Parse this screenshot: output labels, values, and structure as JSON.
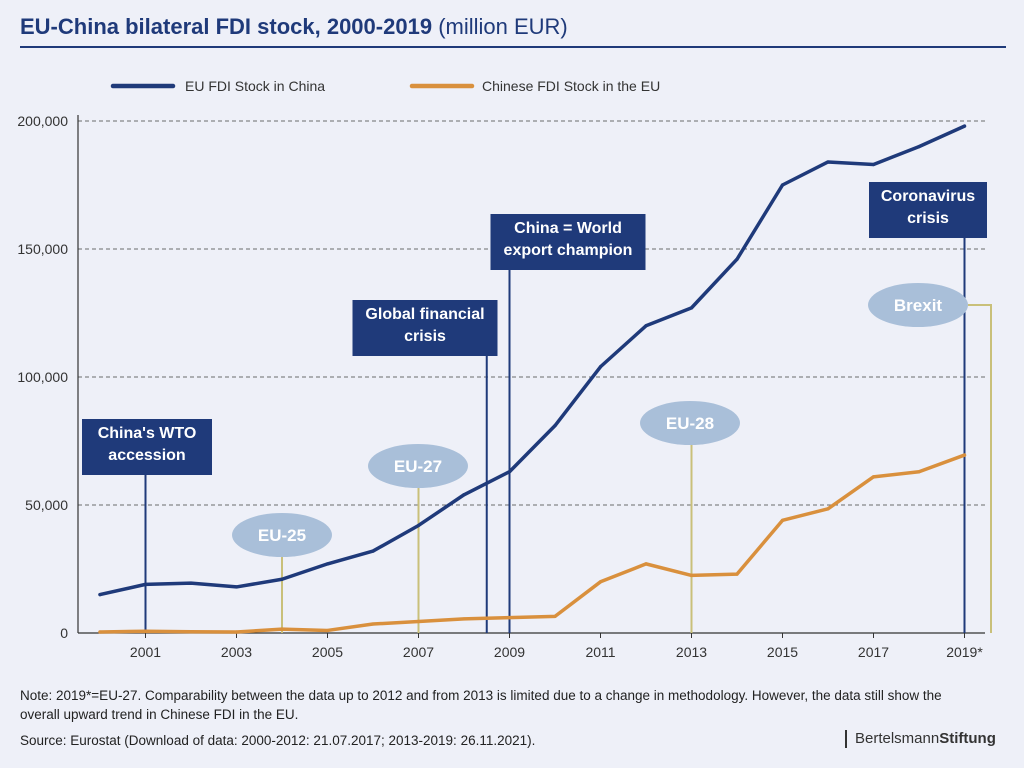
{
  "header": {
    "title_bold": "EU-China bilateral FDI stock, 2000-2019",
    "title_unit": "(million EUR)"
  },
  "chart_data": {
    "type": "line",
    "title": "EU-China bilateral FDI stock, 2000-2019 (million EUR)",
    "x": [
      2000,
      2001,
      2002,
      2003,
      2004,
      2005,
      2006,
      2007,
      2008,
      2009,
      2010,
      2011,
      2012,
      2013,
      2014,
      2015,
      2016,
      2017,
      2018,
      2019
    ],
    "x_tick_values": [
      2001,
      2003,
      2005,
      2007,
      2009,
      2011,
      2013,
      2015,
      2017,
      2019
    ],
    "x_tick_labels": [
      "2001",
      "2003",
      "2005",
      "2007",
      "2009",
      "2011",
      "2013",
      "2015",
      "2017",
      "2019*"
    ],
    "y_ticks": [
      {
        "value": 0,
        "label": "0"
      },
      {
        "value": 50000,
        "label": "50,000"
      },
      {
        "value": 100000,
        "label": "100,000"
      },
      {
        "value": 150000,
        "label": "150,000"
      },
      {
        "value": 200000,
        "label": "200,000"
      }
    ],
    "ylim": [
      0,
      200000
    ],
    "grid": true,
    "legend_position": "top-left",
    "series": [
      {
        "name": "EU FDI Stock in China",
        "color": "#1f3a7a",
        "values": [
          15000,
          19000,
          19500,
          18000,
          21000,
          27000,
          32000,
          42000,
          54000,
          63000,
          81000,
          104000,
          120000,
          127000,
          146000,
          175000,
          184000,
          183000,
          190000,
          198000
        ]
      },
      {
        "name": "Chinese FDI Stock in the EU",
        "color": "#d9903d",
        "values": [
          400,
          700,
          500,
          400,
          1500,
          1000,
          3500,
          4500,
          5500,
          6000,
          6500,
          20000,
          27000,
          22500,
          23000,
          44000,
          48500,
          61000,
          63000,
          69500
        ]
      }
    ],
    "event_markers": [
      {
        "label_lines": [
          "China's  WTO",
          "accession"
        ],
        "x": 2001.0,
        "style": "box"
      },
      {
        "label_lines": [
          "Global financial",
          "crisis"
        ],
        "x": 2008.5,
        "style": "box"
      },
      {
        "label_lines": [
          "China = World",
          "export champion"
        ],
        "x": 2009.0,
        "style": "box"
      },
      {
        "label_lines": [
          "Coronavirus",
          "crisis"
        ],
        "x": 2019.0,
        "style": "box"
      },
      {
        "label_lines": [
          "EU-25"
        ],
        "x": 2004.0,
        "style": "oval"
      },
      {
        "label_lines": [
          "EU-27"
        ],
        "x": 2007.0,
        "style": "oval"
      },
      {
        "label_lines": [
          "EU-28"
        ],
        "x": 2013.0,
        "style": "oval"
      },
      {
        "label_lines": [
          "Brexit"
        ],
        "x": 2019.3,
        "style": "oval"
      }
    ],
    "colors": {
      "box_fill": "#1f3a7a",
      "box_text": "#ffffff",
      "oval_fill": "#a9bfd9",
      "oval_text": "#ffffff",
      "oval_line": "#c9c07a",
      "grid": "#6b6b6b",
      "axis": "#333333"
    }
  },
  "footer": {
    "note": "Note: 2019*=EU-27. Comparability between the data up to 2012 and from 2013 is limited due to a change in methodology. However, the data still show the overall upward trend in Chinese FDI in the EU.",
    "source": "Source: Eurostat (Download of data: 2000-2012: 21.07.2017; 2013-2019: 26.11.2021).",
    "brand_light": "Bertelsmann",
    "brand_bold": "Stiftung"
  }
}
